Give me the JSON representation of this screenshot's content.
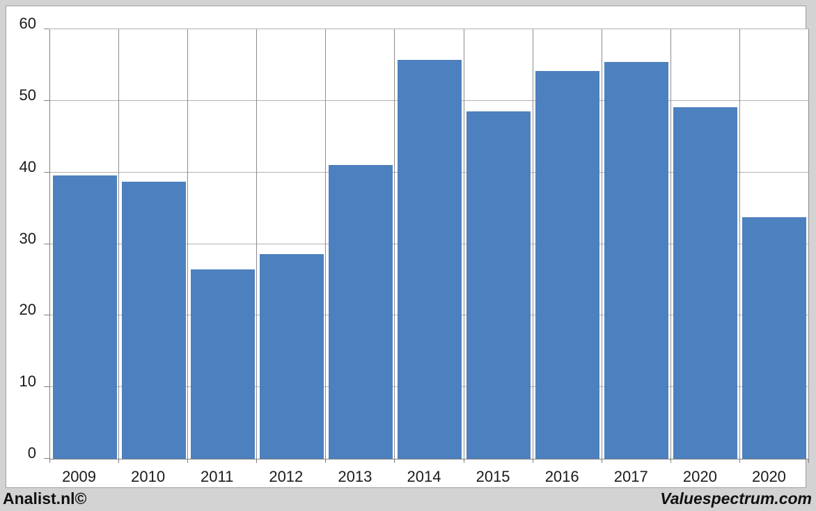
{
  "branding": {
    "left": "Analist.nl©",
    "right": "Valuespectrum.com"
  },
  "chart_data": {
    "type": "bar",
    "categories": [
      "2009",
      "2010",
      "2011",
      "2012",
      "2013",
      "2014",
      "2015",
      "2016",
      "2017",
      "2020",
      "2020"
    ],
    "values": [
      39.6,
      38.7,
      26.5,
      28.6,
      41.0,
      55.7,
      48.5,
      54.2,
      55.4,
      49.1,
      33.7
    ],
    "title": "",
    "xlabel": "",
    "ylabel": "",
    "ylim": [
      0,
      60
    ],
    "yticks": [
      0,
      10,
      20,
      30,
      40,
      50,
      60
    ],
    "grid": true,
    "legend": false,
    "colors": {
      "bar": "#4d80be",
      "horizontal_gridline": "#b3b3b3",
      "vertical_gridline": "#8b8b8b",
      "axis": "#808080",
      "plot_background": "#ffffff",
      "outer_background": "#d3d3d3",
      "text": "#1a1a1a"
    }
  }
}
